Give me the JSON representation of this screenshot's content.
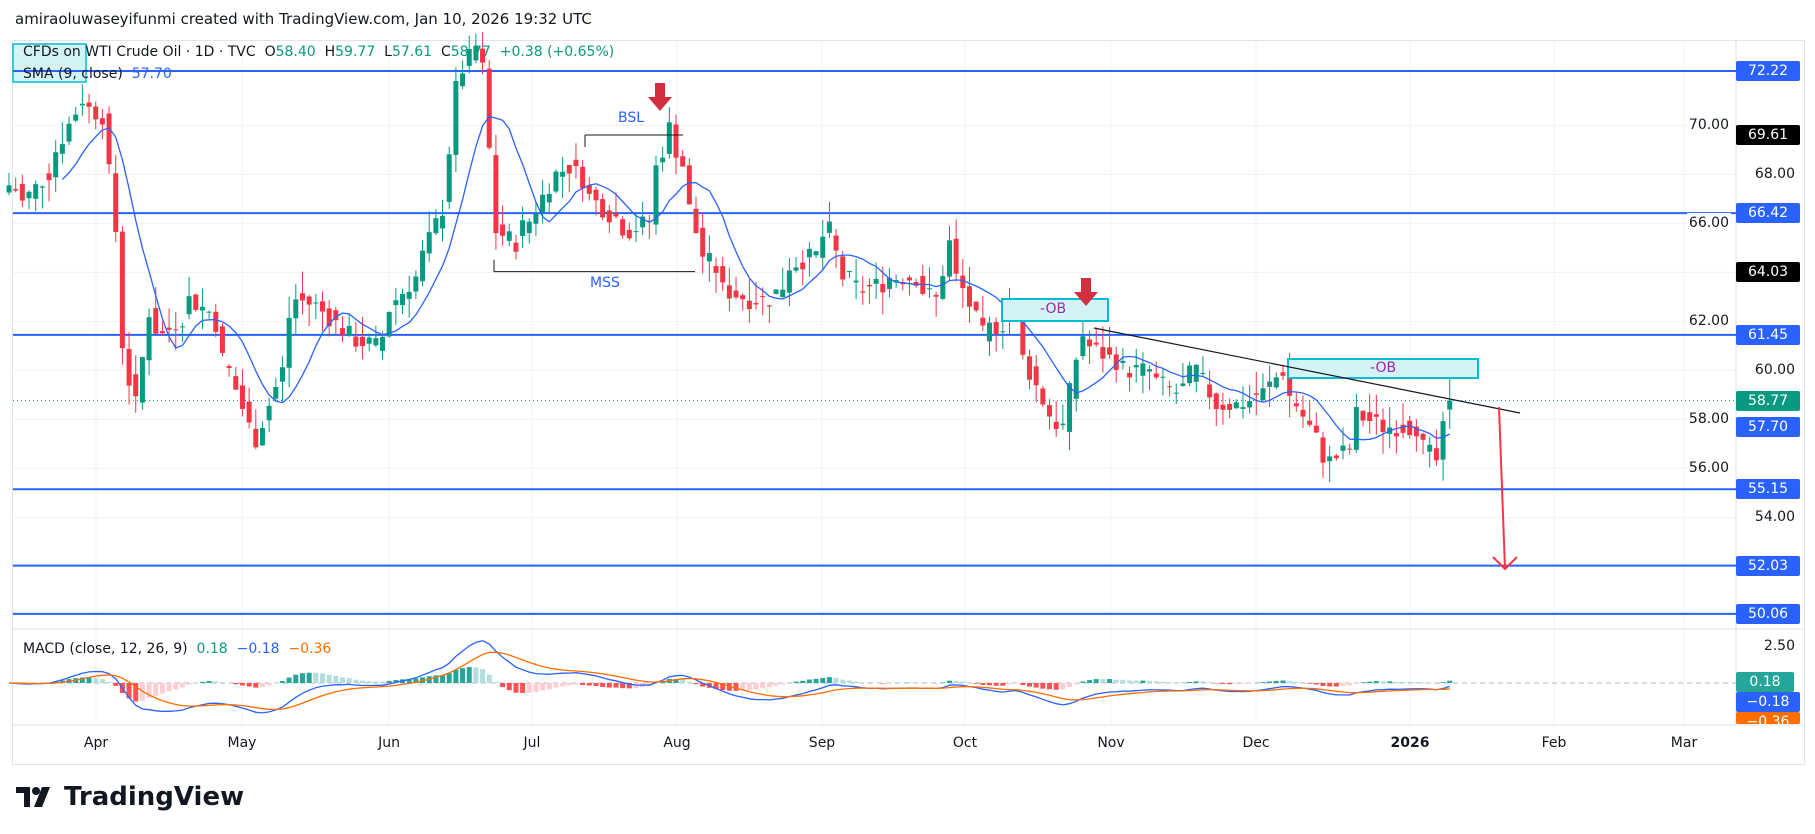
{
  "header": {
    "title": "amiraoluwaseyifunmi created with TradingView.com, Jan 10, 2026 19:32 UTC"
  },
  "legend": {
    "symbol": "CFDs on WTI Crude Oil · 1D · TVC",
    "open_label": "O",
    "open": "58.40",
    "high_label": "H",
    "high": "59.77",
    "low_label": "L",
    "low": "57.61",
    "close_label": "C",
    "close": "58.77",
    "change": "+0.38 (+0.65%)",
    "sma_label": "SMA (9, close)",
    "sma_value": "57.70"
  },
  "macd_legend": {
    "label": "MACD (close, 12, 26, 9)",
    "hist": "0.18",
    "macd": "−0.18",
    "signal": "−0.36"
  },
  "price_axis": {
    "ticks": [
      "70.00",
      "68.00",
      "66.00",
      "62.00",
      "60.00",
      "58.00",
      "56.00",
      "54.00"
    ],
    "level_labels": [
      {
        "value": "72.22",
        "price": 72.22,
        "color": "#2962ff"
      },
      {
        "value": "69.61",
        "price": 69.61,
        "color": "#000000"
      },
      {
        "value": "66.42",
        "price": 66.42,
        "color": "#2962ff"
      },
      {
        "value": "64.03",
        "price": 64.03,
        "color": "#000000"
      },
      {
        "value": "61.45",
        "price": 61.45,
        "color": "#2962ff"
      },
      {
        "value": "58.77",
        "price": 58.77,
        "color": "#089981"
      },
      {
        "value": "57.70",
        "price": 57.7,
        "color": "#2962ff"
      },
      {
        "value": "55.15",
        "price": 55.15,
        "color": "#2962ff"
      },
      {
        "value": "52.03",
        "price": 52.03,
        "color": "#2962ff"
      },
      {
        "value": "50.06",
        "price": 50.06,
        "color": "#2962ff"
      }
    ]
  },
  "macd_axis": {
    "tick": "2.50",
    "hist_label": "0.18",
    "macd_label": "−0.18",
    "signal_label": "−0.36"
  },
  "time_axis": [
    "Apr",
    "May",
    "Jun",
    "Jul",
    "Aug",
    "Sep",
    "Oct",
    "Nov",
    "Dec",
    "2026",
    "Feb",
    "Mar"
  ],
  "horizontal_levels": [
    72.22,
    66.42,
    61.45,
    55.15,
    52.03,
    50.06
  ],
  "annotations": {
    "bsl": "BSL",
    "mss": "MSS",
    "ob1": "-OB",
    "ob2": "-OB"
  },
  "colors": {
    "up": "#089981",
    "down": "#f23645",
    "level": "#2962ff",
    "sma": "#2962ff",
    "macd": "#2962ff",
    "signal": "#ff6d00",
    "ob_fill": "#d4f3f6",
    "ob_border": "#00bcd4",
    "ob_text": "#9c27b0",
    "arrow": "#d32f3f"
  },
  "chart_data": {
    "type": "candlestick",
    "symbol": "CFDs on WTI Crude Oil",
    "interval": "1D",
    "last_bar": {
      "open": 58.4,
      "high": 59.77,
      "low": 57.61,
      "close": 58.77
    },
    "close_path": [
      [
        "2025-03-13",
        67.56
      ],
      [
        "2025-03-17",
        66.86
      ],
      [
        "2025-03-24",
        68.97
      ],
      [
        "2025-03-28",
        71.09
      ],
      [
        "2025-04-02",
        70.4
      ],
      [
        "2025-04-04",
        65.7
      ],
      [
        "2025-04-08",
        59.56
      ],
      [
        "2025-04-09",
        58.6
      ],
      [
        "2025-04-11",
        62.4
      ],
      [
        "2025-04-15",
        61.45
      ],
      [
        "2025-04-21",
        62.9
      ],
      [
        "2025-04-24",
        62.4
      ],
      [
        "2025-04-29",
        60.0
      ],
      [
        "2025-05-02",
        57.7
      ],
      [
        "2025-05-05",
        57.2
      ],
      [
        "2025-05-09",
        60.0
      ],
      [
        "2025-05-13",
        62.9
      ],
      [
        "2025-05-19",
        62.4
      ],
      [
        "2025-05-23",
        61.45
      ],
      [
        "2025-05-29",
        61.0
      ],
      [
        "2025-06-03",
        62.9
      ],
      [
        "2025-06-09",
        64.7
      ],
      [
        "2025-06-12",
        66.6
      ],
      [
        "2025-06-13",
        69.0
      ],
      [
        "2025-06-17",
        72.3
      ],
      [
        "2025-06-19",
        73.2
      ],
      [
        "2025-06-20",
        72.3
      ],
      [
        "2025-06-23",
        69.0
      ],
      [
        "2025-06-24",
        65.7
      ],
      [
        "2025-06-27",
        65.2
      ],
      [
        "2025-07-01",
        66.1
      ],
      [
        "2025-07-04",
        67.6
      ],
      [
        "2025-07-09",
        68.3
      ],
      [
        "2025-07-14",
        67.1
      ],
      [
        "2025-07-17",
        66.4
      ],
      [
        "2025-07-22",
        65.7
      ],
      [
        "2025-07-25",
        66.1
      ],
      [
        "2025-07-29",
        69.0
      ],
      [
        "2025-07-30",
        69.9
      ],
      [
        "2025-07-31",
        69.0
      ],
      [
        "2025-08-04",
        66.6
      ],
      [
        "2025-08-06",
        64.7
      ],
      [
        "2025-08-11",
        63.3
      ],
      [
        "2025-08-15",
        62.9
      ],
      [
        "2025-08-20",
        62.9
      ],
      [
        "2025-08-25",
        64.3
      ],
      [
        "2025-08-29",
        64.7
      ],
      [
        "2025-09-02",
        65.7
      ],
      [
        "2025-09-04",
        63.8
      ],
      [
        "2025-09-09",
        63.3
      ],
      [
        "2025-09-15",
        63.8
      ],
      [
        "2025-09-19",
        63.8
      ],
      [
        "2025-09-24",
        62.9
      ],
      [
        "2025-09-26",
        65.2
      ],
      [
        "2025-09-30",
        63.3
      ],
      [
        "2025-10-03",
        61.45
      ],
      [
        "2025-10-08",
        61.9
      ],
      [
        "2025-10-09",
        62.9
      ],
      [
        "2025-10-13",
        60.5
      ],
      [
        "2025-10-17",
        58.2
      ],
      [
        "2025-10-21",
        57.7
      ],
      [
        "2025-10-23",
        60.5
      ],
      [
        "2025-10-24",
        61.45
      ],
      [
        "2025-10-30",
        60.5
      ],
      [
        "2025-11-04",
        60.0
      ],
      [
        "2025-11-07",
        60.0
      ],
      [
        "2025-11-13",
        59.1
      ],
      [
        "2025-11-18",
        60.0
      ],
      [
        "2025-11-21",
        58.6
      ],
      [
        "2025-11-26",
        58.6
      ],
      [
        "2025-12-02",
        59.1
      ],
      [
        "2025-12-05",
        60.0
      ],
      [
        "2025-12-09",
        58.6
      ],
      [
        "2025-12-12",
        57.2
      ],
      [
        "2025-12-16",
        56.3
      ],
      [
        "2025-12-19",
        56.8
      ],
      [
        "2025-12-22",
        58.2
      ],
      [
        "2025-12-26",
        57.7
      ],
      [
        "2026-01-02",
        57.7
      ],
      [
        "2026-01-07",
        56.3
      ],
      [
        "2026-01-09",
        58.77
      ]
    ],
    "y_range": [
      49.5,
      74
    ],
    "indicators": [
      "SMA (9, close)",
      "MACD (close, 12, 26, 9)"
    ],
    "grid": true
  }
}
